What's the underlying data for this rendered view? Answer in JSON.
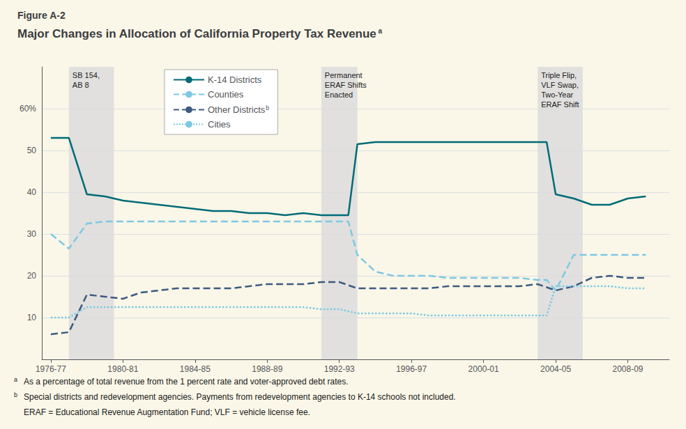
{
  "chart_data": {
    "type": "line",
    "figure_label": "Figure A-2",
    "title": "Major Changes in Allocation of California Property Tax Revenue",
    "title_note_marker": "a",
    "background_color": "#FAF7E8",
    "xlim": [
      1976.0,
      2010.8
    ],
    "xticks": [
      {
        "value": 1976.5,
        "label": "1976-77"
      },
      {
        "value": 1980.5,
        "label": "1980-81"
      },
      {
        "value": 1984.5,
        "label": "1984-85"
      },
      {
        "value": 1988.5,
        "label": "1988-89"
      },
      {
        "value": 1992.5,
        "label": "1992-93"
      },
      {
        "value": 1996.5,
        "label": "1996-97"
      },
      {
        "value": 2000.5,
        "label": "2000-01"
      },
      {
        "value": 2004.5,
        "label": "2004-05"
      },
      {
        "value": 2008.5,
        "label": "2008-09"
      }
    ],
    "ylim": [
      0,
      70
    ],
    "yticks": [
      10,
      20,
      30,
      40,
      50,
      {
        "value": 60,
        "label": "60%"
      }
    ],
    "grid": "y",
    "legend": "upper left",
    "annotations": {
      "color": "#DCDCDC",
      "regions": [
        {
          "x": [
            1977.5,
            1980.0
          ],
          "text": "SB 154,\nAB 8"
        },
        {
          "x": [
            1991.5,
            1993.5
          ],
          "text": "Permanent\nERAF Shifts\nEnacted"
        },
        {
          "x": [
            2003.5,
            2006.0
          ],
          "text": "Triple Flip,\nVLF Swap,\nTwo-Year\nERAF Shift"
        }
      ]
    },
    "series": [
      {
        "name": "K-14 Districts",
        "color": "#006B77",
        "line_style": "solid",
        "x": [
          1976.5,
          1977.5,
          1978.5,
          1979.5,
          1980.5,
          1981.5,
          1982.5,
          1983.5,
          1984.5,
          1985.5,
          1986.5,
          1987.5,
          1988.5,
          1989.5,
          1990.5,
          1991.5,
          1992.5,
          1993.0,
          1993.5,
          1994.5,
          1995.5,
          1996.5,
          1997.5,
          1998.5,
          1999.5,
          2000.5,
          2001.5,
          2002.5,
          2003.5,
          2004.0,
          2004.5,
          2005.5,
          2006.5,
          2007.5,
          2008.5,
          2009.5
        ],
        "values": [
          53,
          53,
          39.5,
          39,
          38,
          37.5,
          37,
          36.5,
          36,
          35.5,
          35.5,
          35,
          35,
          34.5,
          35,
          34.5,
          34.5,
          34.5,
          51.5,
          52,
          52,
          52,
          52,
          52,
          52,
          52,
          52,
          52,
          52,
          52,
          39.5,
          38.5,
          37,
          37,
          38.5,
          39
        ]
      },
      {
        "name": "Counties",
        "color": "#7EC8E3",
        "line_style": "dashed",
        "x": [
          1976.5,
          1977.5,
          1978.5,
          1979.5,
          1980.5,
          1981.5,
          1982.5,
          1983.5,
          1984.5,
          1985.5,
          1986.5,
          1987.5,
          1988.5,
          1989.5,
          1990.5,
          1991.5,
          1992.5,
          1993.0,
          1993.5,
          1994.5,
          1995.5,
          1996.5,
          1997.5,
          1998.5,
          1999.5,
          2000.5,
          2001.5,
          2002.5,
          2003.5,
          2004.0,
          2004.5,
          2005.5,
          2006.5,
          2007.5,
          2008.5,
          2009.5
        ],
        "values": [
          30,
          26.5,
          32.5,
          33,
          33,
          33,
          33,
          33,
          33,
          33,
          33,
          33,
          33,
          33,
          33,
          33,
          33,
          33,
          25,
          21,
          20,
          20,
          20,
          19.5,
          19.5,
          19.5,
          19.5,
          19.5,
          19,
          19,
          16.5,
          25,
          25,
          25,
          25,
          25
        ]
      },
      {
        "name": "Other Districts",
        "note_marker": "b",
        "color": "#3D5A80",
        "line_style": "dashed",
        "x": [
          1976.5,
          1977.5,
          1978.5,
          1979.5,
          1980.5,
          1981.5,
          1982.5,
          1983.5,
          1984.5,
          1985.5,
          1986.5,
          1987.5,
          1988.5,
          1989.5,
          1990.5,
          1991.5,
          1992.5,
          1993.5,
          1994.5,
          1995.5,
          1996.5,
          1997.5,
          1998.5,
          1999.5,
          2000.5,
          2001.5,
          2002.5,
          2003.5,
          2004.5,
          2005.5,
          2006.5,
          2007.5,
          2008.5,
          2009.5
        ],
        "values": [
          6,
          6.5,
          15.5,
          15,
          14.5,
          16,
          16.5,
          17,
          17,
          17,
          17,
          17.5,
          18,
          18,
          18,
          18.5,
          18.5,
          17,
          17,
          17,
          17,
          17,
          17.5,
          17.5,
          17.5,
          17.5,
          17.5,
          18,
          16.5,
          17.5,
          19.5,
          20,
          19.5,
          19.5
        ]
      },
      {
        "name": "Cities",
        "color": "#7EC8E3",
        "line_style": "dotted",
        "x": [
          1976.5,
          1977.5,
          1978.5,
          1979.5,
          1980.5,
          1981.5,
          1982.5,
          1983.5,
          1984.5,
          1985.5,
          1986.5,
          1987.5,
          1988.5,
          1989.5,
          1990.5,
          1991.5,
          1992.5,
          1993.5,
          1994.5,
          1995.5,
          1996.5,
          1997.5,
          1998.5,
          1999.5,
          2000.5,
          2001.5,
          2002.5,
          2003.5,
          2004.0,
          2004.5,
          2005.5,
          2006.5,
          2007.5,
          2008.5,
          2009.5
        ],
        "values": [
          10,
          10,
          12.5,
          12.5,
          12.5,
          12.5,
          12.5,
          12.5,
          12.5,
          12.5,
          12.5,
          12.5,
          12.5,
          12.5,
          12.5,
          12,
          12,
          11,
          11,
          11,
          11,
          10.5,
          10.5,
          10.5,
          10.5,
          10.5,
          10.5,
          10.5,
          10.5,
          17.5,
          17.5,
          17.5,
          17.5,
          17,
          17
        ]
      }
    ],
    "footnotes": [
      {
        "marker": "a",
        "text": "As a percentage of total revenue from the 1 percent rate and voter-approved debt rates."
      },
      {
        "marker": "b",
        "text": "Special districts and redevelopment agencies. Payments from redevelopment agencies to K-14 schools not included."
      },
      {
        "text": "ERAF = Educational Revenue Augmentation Fund; VLF = vehicle license fee."
      }
    ]
  }
}
